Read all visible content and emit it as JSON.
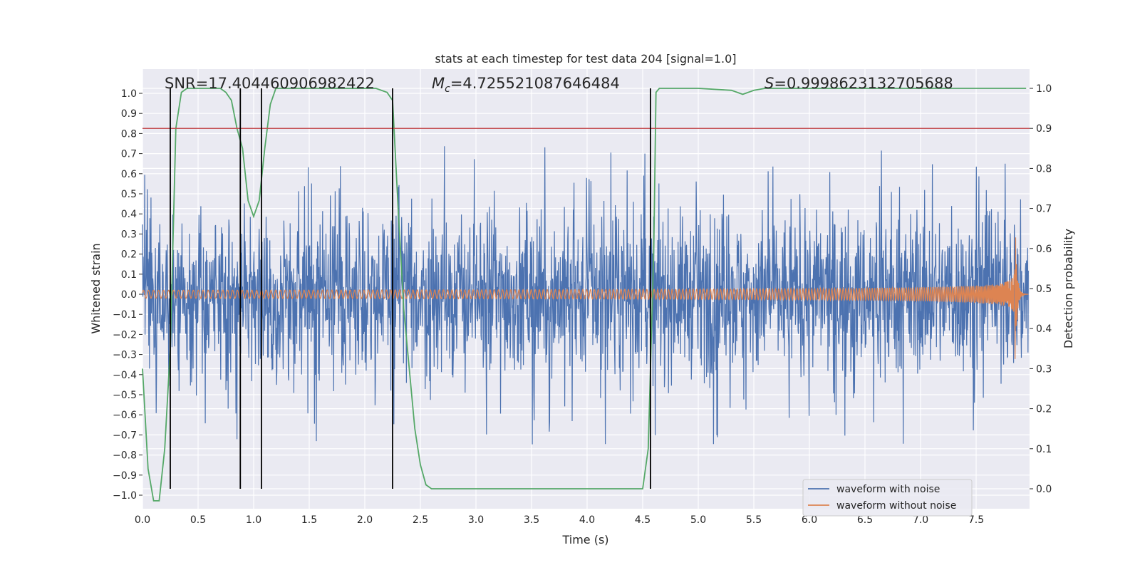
{
  "chart_data": {
    "type": "line",
    "title": "stats at each timestep for test data 204 [signal=1.0]",
    "xlabel": "Time (s)",
    "ylabel": "Whitened strain",
    "y2label": "Detection probability",
    "xlim": [
      0.0,
      8.0
    ],
    "ylim": [
      -1.07,
      1.07
    ],
    "y2lim": [
      -0.05,
      1.05
    ],
    "xticks": [
      "0.0",
      "0.5",
      "1.0",
      "1.5",
      "2.0",
      "2.5",
      "3.0",
      "3.5",
      "4.0",
      "4.5",
      "5.0",
      "5.5",
      "6.0",
      "6.5",
      "7.0",
      "7.5"
    ],
    "xtick_values": [
      0,
      0.5,
      1,
      1.5,
      2,
      2.5,
      3,
      3.5,
      4,
      4.5,
      5,
      5.5,
      6,
      6.5,
      7,
      7.5
    ],
    "yticks": [
      "−1.0",
      "−0.9",
      "−0.8",
      "−0.7",
      "−0.6",
      "−0.5",
      "−0.4",
      "−0.3",
      "−0.2",
      "−0.1",
      "0.0",
      "0.1",
      "0.2",
      "0.3",
      "0.4",
      "0.5",
      "0.6",
      "0.7",
      "0.8",
      "0.9",
      "1.0"
    ],
    "ytick_values": [
      -1,
      -0.9,
      -0.8,
      -0.7,
      -0.6,
      -0.5,
      -0.4,
      -0.3,
      -0.2,
      -0.1,
      0,
      0.1,
      0.2,
      0.3,
      0.4,
      0.5,
      0.6,
      0.7,
      0.8,
      0.9,
      1.0
    ],
    "y2ticks": [
      "0.0",
      "0.1",
      "0.2",
      "0.3",
      "0.4",
      "0.5",
      "0.6",
      "0.7",
      "0.8",
      "0.9",
      "1.0"
    ],
    "y2tick_values": [
      0,
      0.1,
      0.2,
      0.3,
      0.4,
      0.5,
      0.6,
      0.7,
      0.8,
      0.9,
      1.0
    ],
    "grid": true,
    "legend_placement": "lower-right",
    "annotations": {
      "snr": "SNR=17.404460906982422",
      "mc_symbol": "M",
      "mc_sub": "c",
      "mc_value": "=4.725521087646484",
      "s_symbol": "S",
      "s_value": "=0.9998623132705688"
    },
    "threshold": {
      "value": 0.9,
      "axis": "y2",
      "color": "#c44e52"
    },
    "vertical_lines_x": [
      0.25,
      0.88,
      1.07,
      2.25,
      4.57
    ],
    "series": [
      {
        "name": "waveform with noise",
        "color": "#4c72b0",
        "axis": "y",
        "envelope": {
          "typical": 0.35,
          "peaks": 0.75
        }
      },
      {
        "name": "waveform without noise",
        "color": "#dd8452",
        "axis": "y",
        "chirp": {
          "start_amp": 0.02,
          "peak_amp": 0.4,
          "merger_x": 7.85,
          "end_x": 8.0
        }
      },
      {
        "name": "detection probability",
        "color": "#55a868",
        "axis": "y2",
        "x": [
          0.0,
          0.05,
          0.1,
          0.15,
          0.2,
          0.25,
          0.3,
          0.35,
          0.4,
          0.5,
          0.6,
          0.7,
          0.75,
          0.8,
          0.85,
          0.9,
          0.95,
          1.0,
          1.05,
          1.1,
          1.15,
          1.2,
          1.3,
          1.5,
          1.7,
          1.9,
          2.1,
          2.2,
          2.25,
          2.3,
          2.35,
          2.4,
          2.45,
          2.5,
          2.55,
          2.6,
          2.7,
          3.0,
          3.5,
          4.0,
          4.4,
          4.5,
          4.55,
          4.6,
          4.62,
          4.65,
          4.7,
          5.0,
          5.3,
          5.4,
          5.45,
          5.5,
          5.6,
          6.0,
          7.0,
          7.5,
          7.95
        ],
        "y": [
          0.3,
          0.05,
          -0.03,
          -0.03,
          0.1,
          0.35,
          0.9,
          0.99,
          1.0,
          1.0,
          1.0,
          1.0,
          0.99,
          0.97,
          0.9,
          0.85,
          0.72,
          0.68,
          0.72,
          0.85,
          0.96,
          1.0,
          1.0,
          1.0,
          1.0,
          1.0,
          1.0,
          0.99,
          0.97,
          0.7,
          0.45,
          0.3,
          0.15,
          0.06,
          0.01,
          0.0,
          0.0,
          0.0,
          0.0,
          0.0,
          0.0,
          0.0,
          0.1,
          0.6,
          0.99,
          1.0,
          1.0,
          1.0,
          0.995,
          0.985,
          0.99,
          0.995,
          1.0,
          1.0,
          1.0,
          1.0,
          1.0
        ]
      }
    ]
  }
}
